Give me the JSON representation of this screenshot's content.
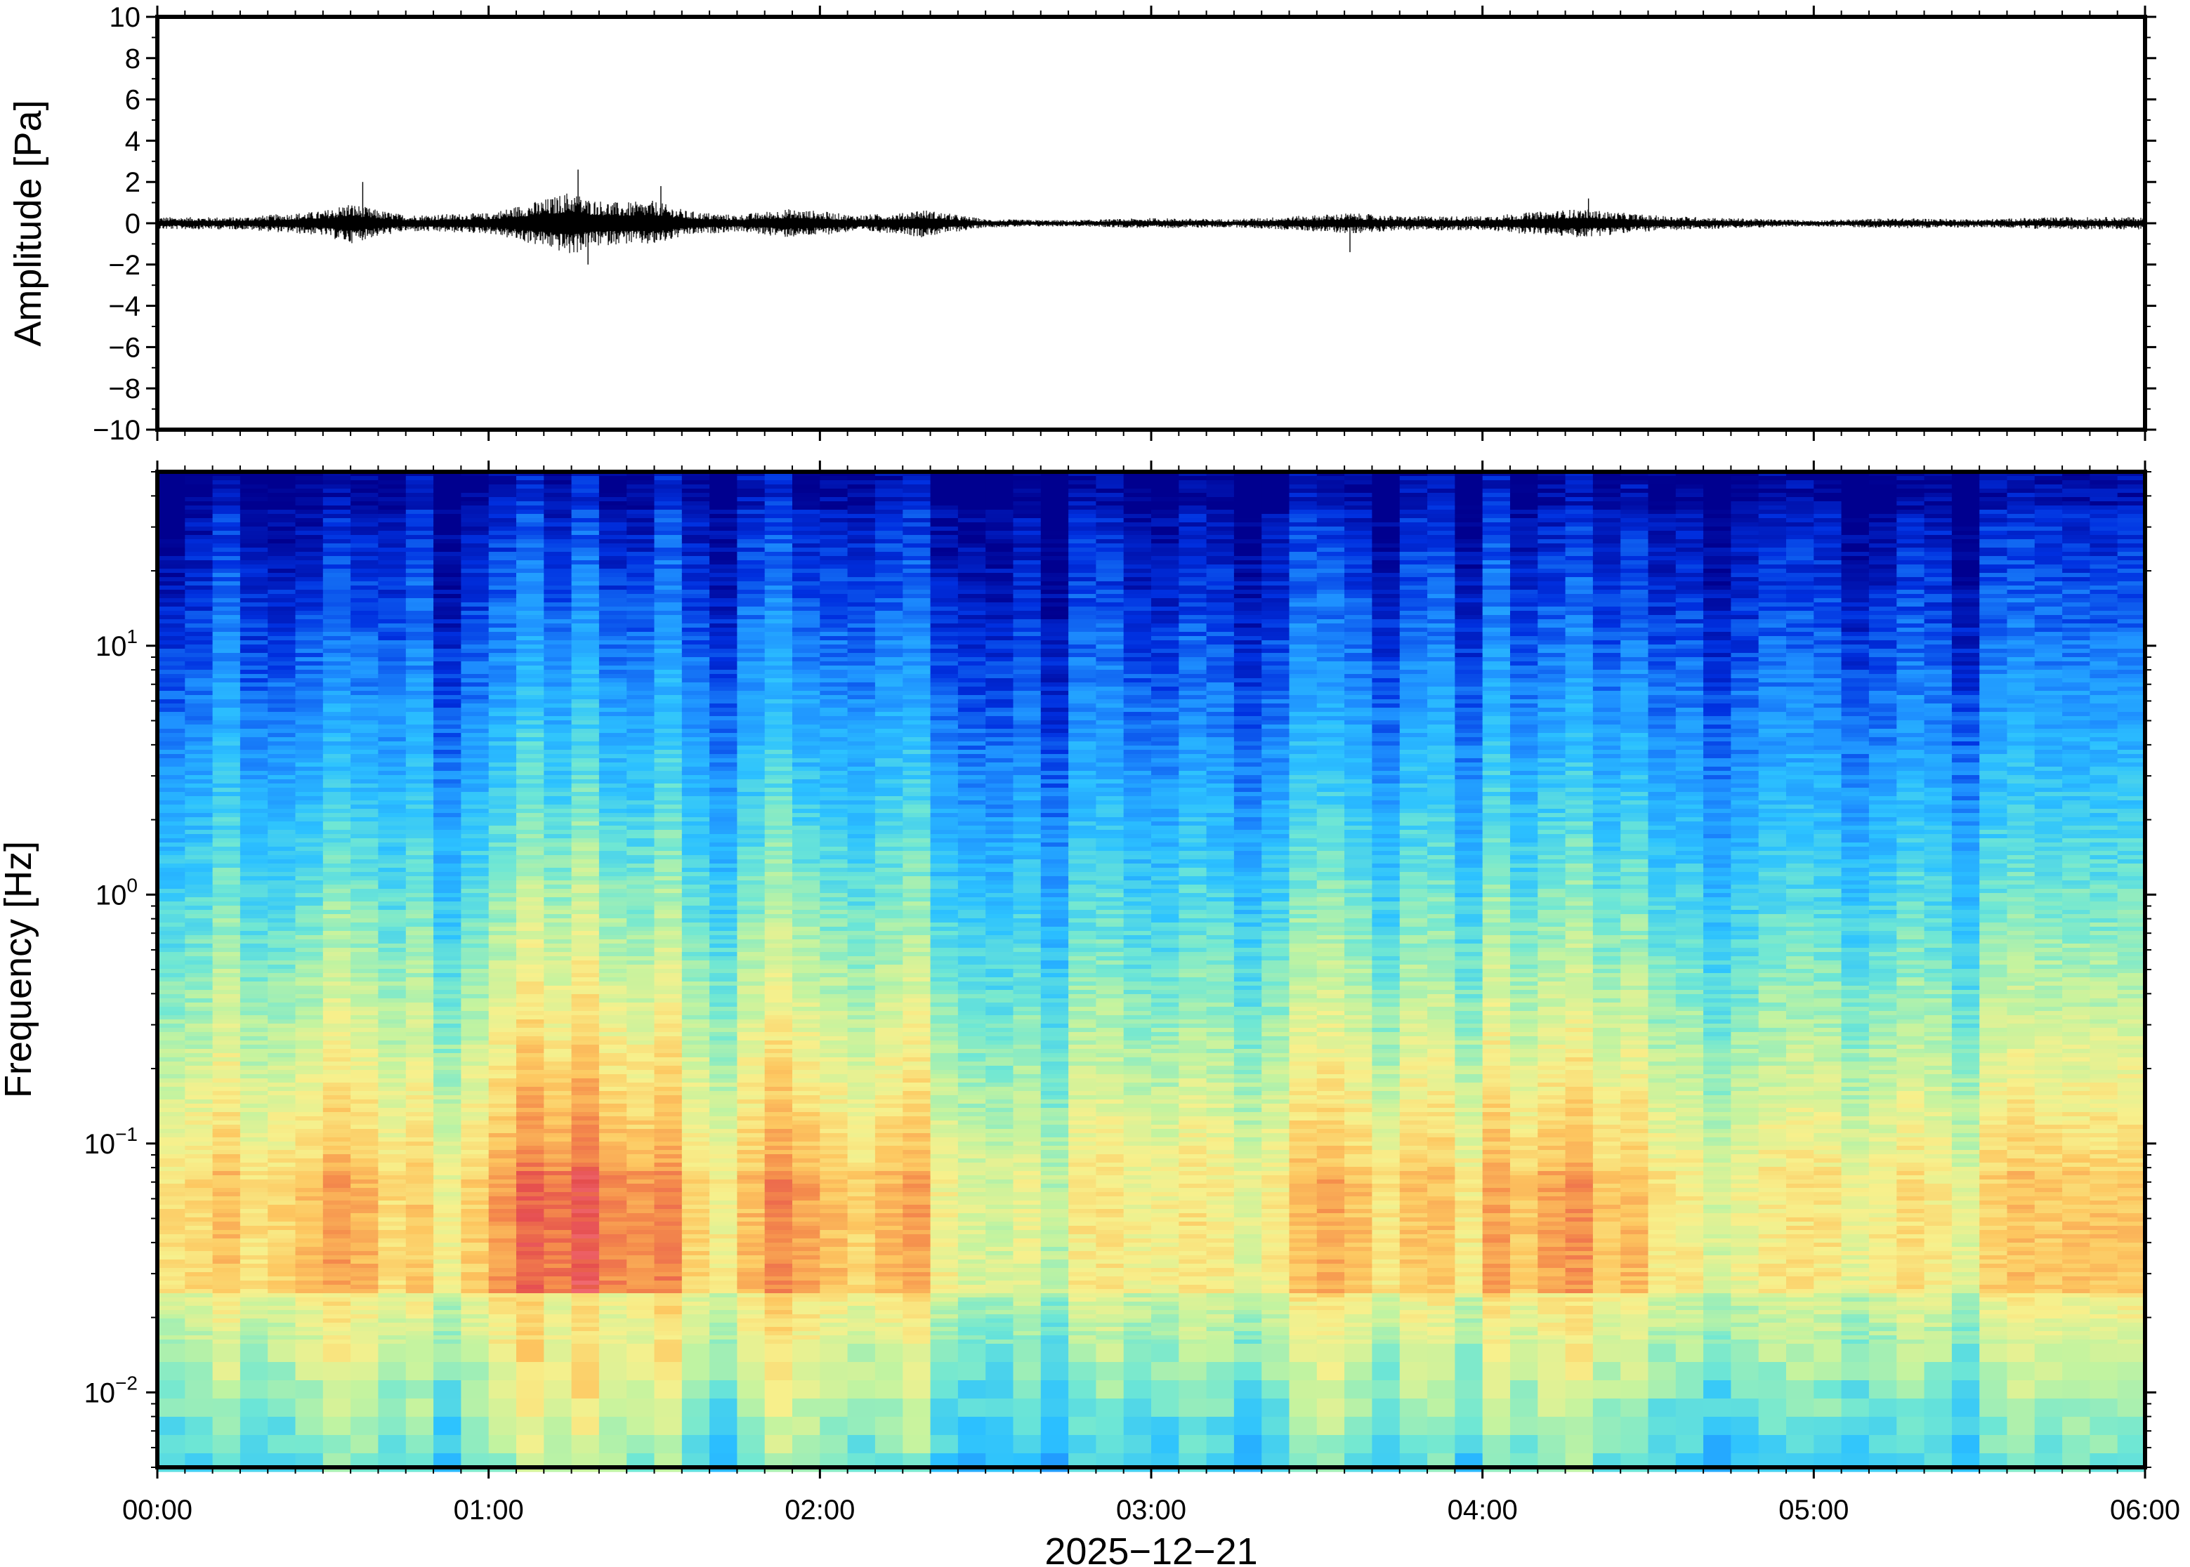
{
  "chart_data": [
    {
      "type": "line",
      "name": "waveform",
      "ylabel": "Amplitude [Pa]",
      "ylim": [
        -10,
        10
      ],
      "y_ticks": [
        "10",
        "8",
        "6",
        "4",
        "2",
        "0",
        "−2",
        "−4",
        "−6",
        "−8",
        "−10"
      ],
      "y_tick_values": [
        10,
        8,
        6,
        4,
        2,
        0,
        -2,
        -4,
        -6,
        -8,
        -10
      ],
      "x_range_hours": [
        0,
        6
      ],
      "envelope": {
        "hours": [
          0.0,
          0.25,
          0.5,
          0.58,
          0.65,
          0.75,
          1.0,
          1.1,
          1.2,
          1.25,
          1.3,
          1.4,
          1.5,
          1.6,
          1.75,
          1.9,
          2.0,
          2.1,
          2.25,
          2.3,
          2.5,
          2.75,
          3.0,
          3.25,
          3.5,
          3.6,
          3.75,
          4.0,
          4.2,
          4.3,
          4.5,
          4.75,
          5.0,
          5.25,
          5.5,
          5.75,
          6.0
        ],
        "amplitude": [
          0.3,
          0.3,
          0.6,
          1.0,
          0.7,
          0.4,
          0.5,
          0.9,
          1.3,
          1.6,
          1.2,
          1.0,
          1.1,
          0.6,
          0.4,
          0.7,
          0.6,
          0.4,
          0.5,
          0.7,
          0.2,
          0.15,
          0.25,
          0.2,
          0.4,
          0.5,
          0.35,
          0.35,
          0.6,
          0.7,
          0.4,
          0.25,
          0.15,
          0.25,
          0.2,
          0.3,
          0.3
        ]
      },
      "peak_spikes": [
        {
          "hour": 0.62,
          "value": 2.0
        },
        {
          "hour": 1.27,
          "value": 2.6
        },
        {
          "hour": 1.52,
          "value": 1.8
        },
        {
          "hour": 1.3,
          "value": -2.0
        },
        {
          "hour": 3.6,
          "value": -1.4
        },
        {
          "hour": 4.32,
          "value": 1.2
        }
      ]
    },
    {
      "type": "heatmap",
      "name": "spectrogram",
      "ylabel": "Frequency [Hz]",
      "y_scale": "log",
      "ylim": [
        0.005,
        50
      ],
      "y_ticks": [
        {
          "value": 10,
          "base": "10",
          "exp": "1"
        },
        {
          "value": 1,
          "base": "10",
          "exp": "0"
        },
        {
          "value": 0.1,
          "base": "10",
          "exp": "−1"
        },
        {
          "value": 0.01,
          "base": "10",
          "exp": "−2"
        }
      ],
      "colormap": [
        "#00008f",
        "#0030e0",
        "#1e90ff",
        "#2cc2ff",
        "#6fe7d4",
        "#c2f3a0",
        "#f7f08c",
        "#fdc760",
        "#f58e4c",
        "#e54d4e",
        "#ff8c9a"
      ],
      "activity": {
        "hours": [
          0.0,
          0.25,
          0.5,
          0.6,
          0.7,
          0.85,
          1.0,
          1.1,
          1.25,
          1.4,
          1.5,
          1.6,
          1.75,
          1.9,
          2.0,
          2.1,
          2.25,
          2.3,
          2.4,
          2.6,
          2.8,
          3.0,
          3.2,
          3.4,
          3.55,
          3.7,
          3.9,
          4.1,
          4.25,
          4.4,
          4.6,
          4.8,
          5.0,
          5.2,
          5.4,
          5.6,
          5.8,
          6.0
        ],
        "level": [
          0.55,
          0.45,
          0.65,
          0.7,
          0.45,
          0.4,
          0.6,
          0.75,
          0.9,
          0.8,
          0.75,
          0.5,
          0.4,
          0.7,
          0.65,
          0.45,
          0.55,
          0.6,
          0.3,
          0.25,
          0.3,
          0.4,
          0.35,
          0.4,
          0.6,
          0.5,
          0.45,
          0.6,
          0.7,
          0.6,
          0.35,
          0.3,
          0.35,
          0.4,
          0.35,
          0.45,
          0.5,
          0.5
        ]
      }
    }
  ],
  "x_axis": {
    "ticks": [
      "00:00",
      "01:00",
      "02:00",
      "03:00",
      "04:00",
      "05:00",
      "06:00"
    ],
    "label": "2025−12−21"
  }
}
